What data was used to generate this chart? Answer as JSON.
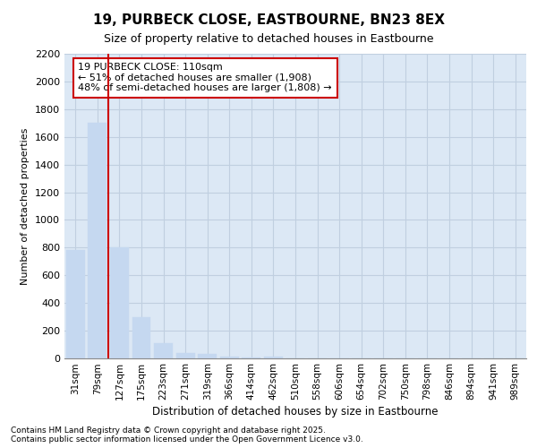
{
  "title_line1": "19, PURBECK CLOSE, EASTBOURNE, BN23 8EX",
  "title_line2": "Size of property relative to detached houses in Eastbourne",
  "xlabel": "Distribution of detached houses by size in Eastbourne",
  "ylabel": "Number of detached properties",
  "categories": [
    "31sqm",
    "79sqm",
    "127sqm",
    "175sqm",
    "223sqm",
    "271sqm",
    "319sqm",
    "366sqm",
    "414sqm",
    "462sqm",
    "510sqm",
    "558sqm",
    "606sqm",
    "654sqm",
    "702sqm",
    "750sqm",
    "798sqm",
    "846sqm",
    "894sqm",
    "941sqm",
    "989sqm"
  ],
  "values": [
    780,
    1700,
    800,
    300,
    110,
    40,
    30,
    10,
    5,
    10,
    2,
    0,
    0,
    0,
    0,
    0,
    0,
    0,
    0,
    0,
    0
  ],
  "bar_color": "#c5d8f0",
  "annotation_line1": "19 PURBECK CLOSE: 110sqm",
  "annotation_line2": "← 51% of detached houses are smaller (1,908)",
  "annotation_line3": "48% of semi-detached houses are larger (1,808) →",
  "annotation_box_color": "#cc0000",
  "vline_x": 1.5,
  "vline_color": "#cc0000",
  "ylim": [
    0,
    2200
  ],
  "yticks": [
    0,
    200,
    400,
    600,
    800,
    1000,
    1200,
    1400,
    1600,
    1800,
    2000,
    2200
  ],
  "footer_line1": "Contains HM Land Registry data © Crown copyright and database right 2025.",
  "footer_line2": "Contains public sector information licensed under the Open Government Licence v3.0.",
  "background_color": "#dce8f5",
  "grid_color": "#c0cfe0"
}
